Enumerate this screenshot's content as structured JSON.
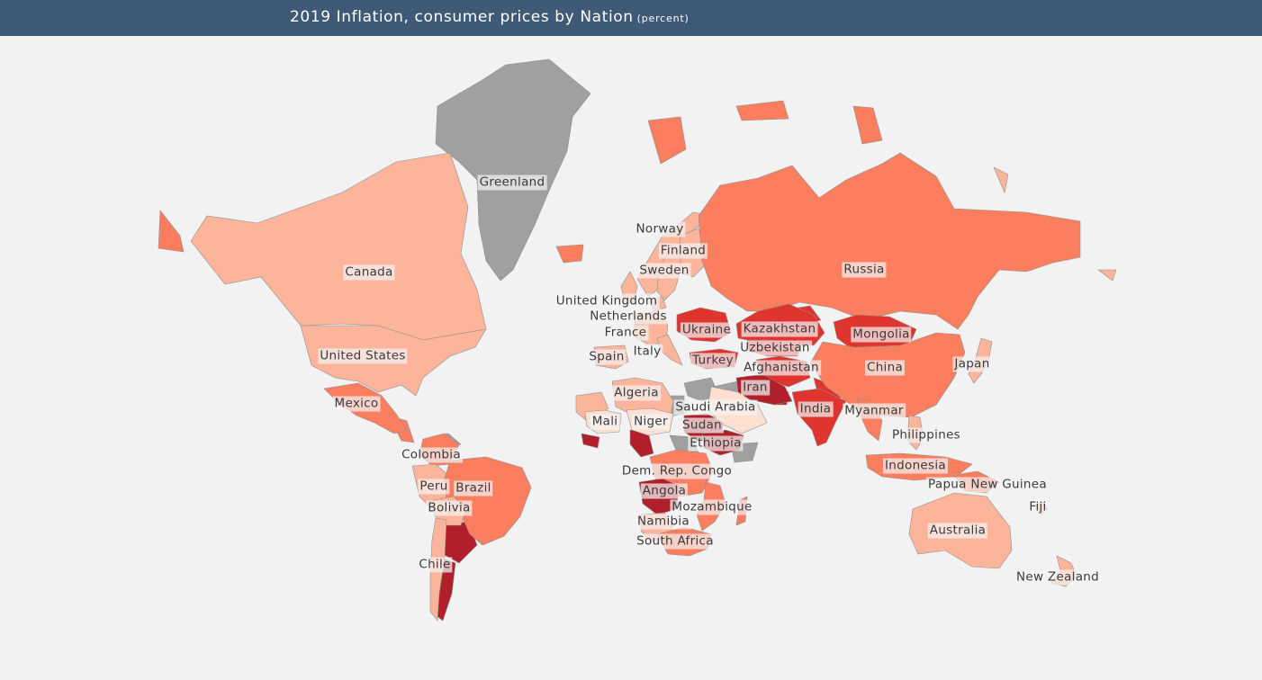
{
  "header": {
    "title": "2019 Inflation, consumer prices by Nation",
    "unit": "(percent)"
  },
  "colors": {
    "background": "#f2f2f2",
    "header": "#3f5a77",
    "no_data": "#a0a0a0",
    "very_low": "#fde0d2",
    "low": "#fcb59a",
    "medium": "#fb7e5e",
    "high": "#e0342e",
    "very_high": "#b1202a",
    "border": "#8f8f8f"
  },
  "countries": [
    {
      "name": "Greenland",
      "level": "no_data"
    },
    {
      "name": "Norway",
      "level": "low"
    },
    {
      "name": "Finland",
      "level": "low"
    },
    {
      "name": "Sweden",
      "level": "low"
    },
    {
      "name": "Russia",
      "level": "medium"
    },
    {
      "name": "Canada",
      "level": "low"
    },
    {
      "name": "United Kingdom",
      "level": "low"
    },
    {
      "name": "Netherlands",
      "level": "low"
    },
    {
      "name": "France",
      "level": "low"
    },
    {
      "name": "Ukraine",
      "level": "high"
    },
    {
      "name": "Kazakhstan",
      "level": "high"
    },
    {
      "name": "Mongolia",
      "level": "high"
    },
    {
      "name": "Uzbekistan",
      "level": "high"
    },
    {
      "name": "United States",
      "level": "low"
    },
    {
      "name": "Spain",
      "level": "low"
    },
    {
      "name": "Italy",
      "level": "low"
    },
    {
      "name": "Turkey",
      "level": "high"
    },
    {
      "name": "Afghanistan",
      "level": "high"
    },
    {
      "name": "China",
      "level": "medium"
    },
    {
      "name": "Japan",
      "level": "low"
    },
    {
      "name": "Iran",
      "level": "very_high"
    },
    {
      "name": "Algeria",
      "level": "low"
    },
    {
      "name": "Mexico",
      "level": "medium"
    },
    {
      "name": "Saudi Arabia",
      "level": "very_low"
    },
    {
      "name": "India",
      "level": "high"
    },
    {
      "name": "Myanmar",
      "level": "medium"
    },
    {
      "name": "Mali",
      "level": "very_low"
    },
    {
      "name": "Niger",
      "level": "very_low"
    },
    {
      "name": "Sudan",
      "level": "very_high"
    },
    {
      "name": "Philippines",
      "level": "low"
    },
    {
      "name": "Ethiopia",
      "level": "very_high"
    },
    {
      "name": "Colombia",
      "level": "medium"
    },
    {
      "name": "Indonesia",
      "level": "medium"
    },
    {
      "name": "Dem. Rep. Congo",
      "level": "medium"
    },
    {
      "name": "Papua New Guinea",
      "level": "medium"
    },
    {
      "name": "Peru",
      "level": "low"
    },
    {
      "name": "Brazil",
      "level": "medium"
    },
    {
      "name": "Angola",
      "level": "very_high"
    },
    {
      "name": "Bolivia",
      "level": "low"
    },
    {
      "name": "Mozambique",
      "level": "medium"
    },
    {
      "name": "Fiji",
      "level": "low"
    },
    {
      "name": "Namibia",
      "level": "low"
    },
    {
      "name": "Australia",
      "level": "low"
    },
    {
      "name": "South Africa",
      "level": "medium"
    },
    {
      "name": "Chile",
      "level": "low"
    },
    {
      "name": "New Zealand",
      "level": "low"
    }
  ]
}
